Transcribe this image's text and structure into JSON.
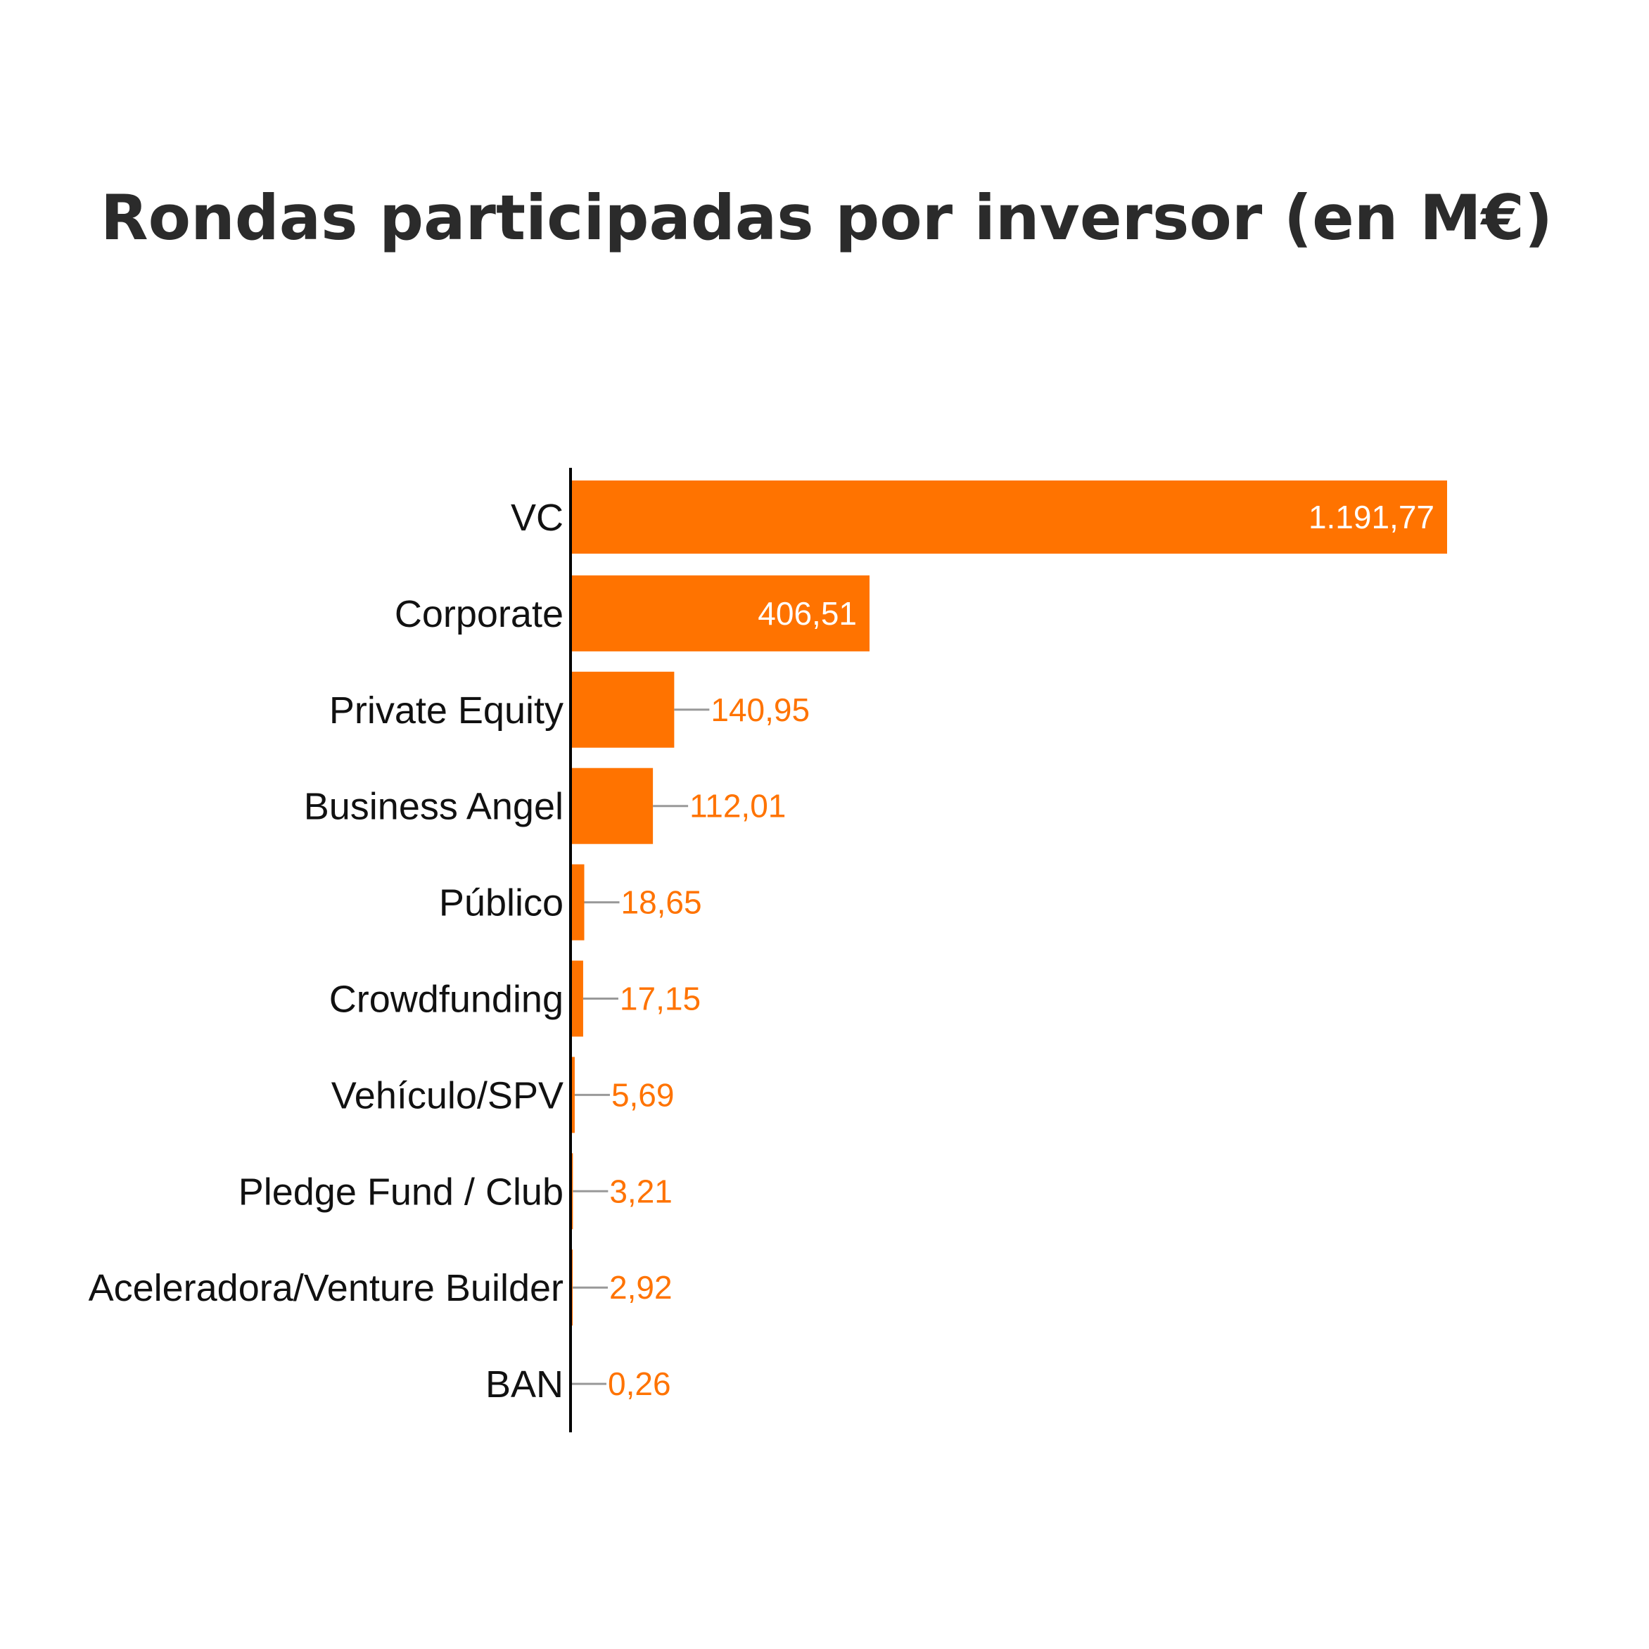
{
  "chart_data": {
    "type": "bar",
    "orientation": "horizontal",
    "title": "Rondas participadas por inversor (en M€)",
    "xlabel": "",
    "ylabel": "",
    "categories": [
      "VC",
      "Corporate",
      "Private Equity",
      "Business Angel",
      "Público",
      "Crowdfunding",
      "Vehículo/SPV",
      "Pledge Fund / Club",
      "Aceleradora/Venture Builder",
      "BAN"
    ],
    "values": [
      1191.77,
      406.51,
      140.95,
      112.01,
      18.65,
      17.15,
      5.69,
      3.21,
      2.92,
      0.26
    ],
    "value_labels": [
      "1.191,77",
      "406,51",
      "140,95",
      "112,01",
      "18,65",
      "17,15",
      "5,69",
      "3,21",
      "2,92",
      "0,26"
    ],
    "xlim": [
      0,
      1191.77
    ],
    "grid": false,
    "colors": {
      "bar": "#ff7300",
      "label_outside": "#ff7300",
      "label_inside": "#ffffff",
      "leader": "#999999",
      "axis": "#000000"
    }
  }
}
